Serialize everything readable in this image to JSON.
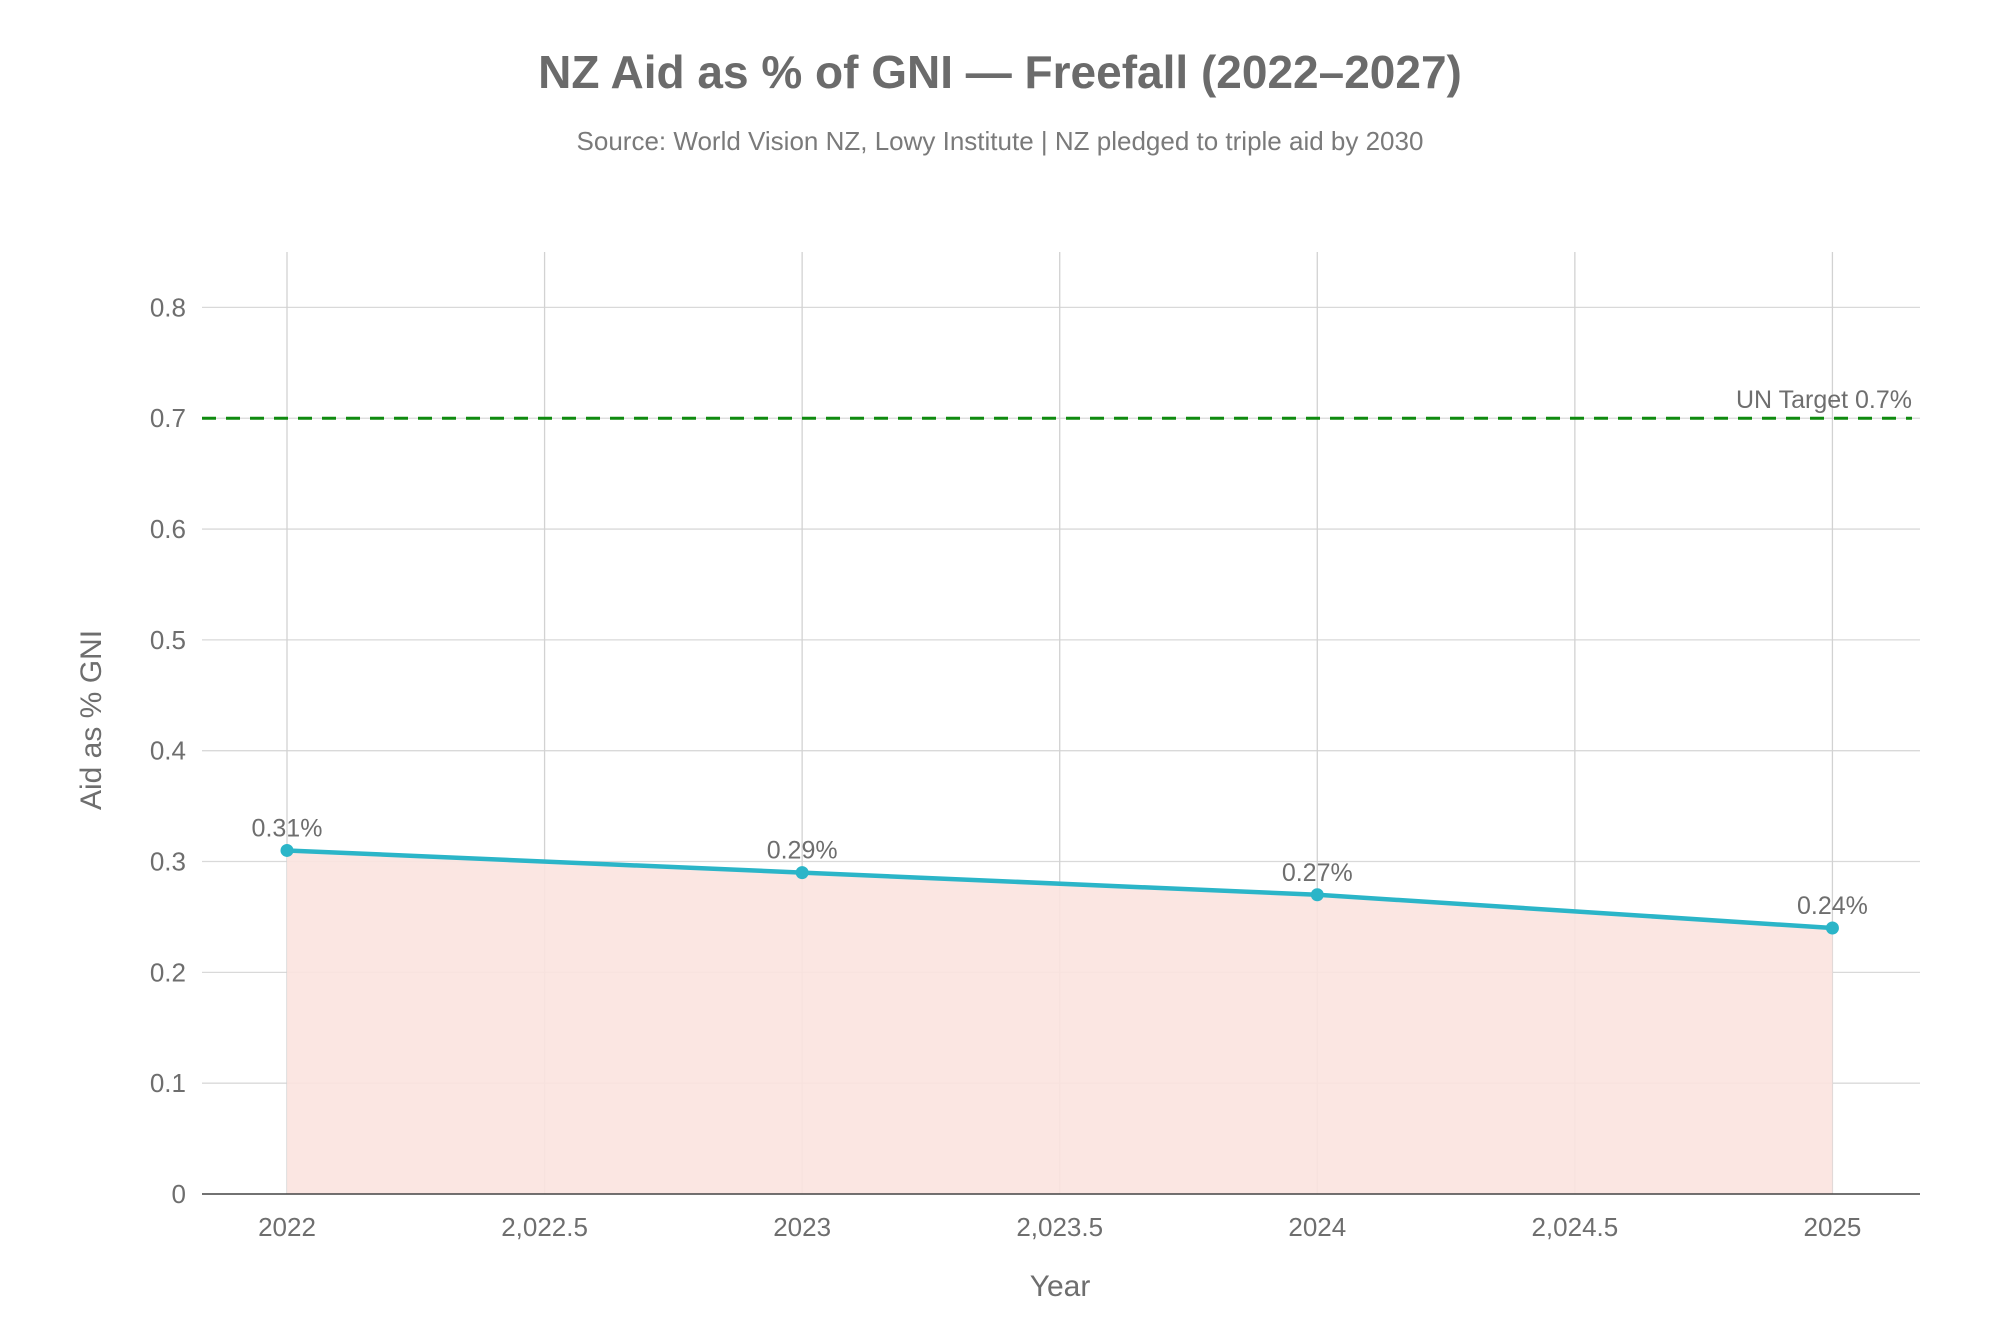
{
  "chart_data": {
    "type": "area",
    "title": "NZ Aid as % of GNI — Freefall (2022–2027)",
    "subtitle": "Source: World Vision NZ, Lowy Institute | NZ pledged to triple aid by 2030",
    "xlabel": "Year",
    "ylabel": "Aid as % GNI",
    "xlim": [
      2021.835,
      2025.17
    ],
    "ylim": [
      0,
      0.85
    ],
    "x_ticks": [
      2022,
      2022.5,
      2023,
      2023.5,
      2024,
      2024.5,
      2025
    ],
    "x_tick_labels": [
      "2022",
      "2,022.5",
      "2023",
      "2,023.5",
      "2024",
      "2,024.5",
      "2025"
    ],
    "y_ticks": [
      0,
      0.1,
      0.2,
      0.3,
      0.4,
      0.5,
      0.6,
      0.7,
      0.8
    ],
    "y_tick_labels": [
      "0",
      "0.1",
      "0.2",
      "0.3",
      "0.4",
      "0.5",
      "0.6",
      "0.7",
      "0.8"
    ],
    "grid": true,
    "series": [
      {
        "name": "NZ Aid as % GNI",
        "x": [
          2022,
          2023,
          2024,
          2025
        ],
        "values": [
          0.31,
          0.29,
          0.27,
          0.24
        ],
        "labels": [
          "0.31%",
          "0.29%",
          "0.27%",
          "0.24%"
        ],
        "color": "#2bb5c8",
        "fill_color": "#fbe3df"
      }
    ],
    "reference_line": {
      "value": 0.7,
      "label": "UN Target 0.7%",
      "color": "#0f8a0f",
      "style": "dashed"
    }
  }
}
